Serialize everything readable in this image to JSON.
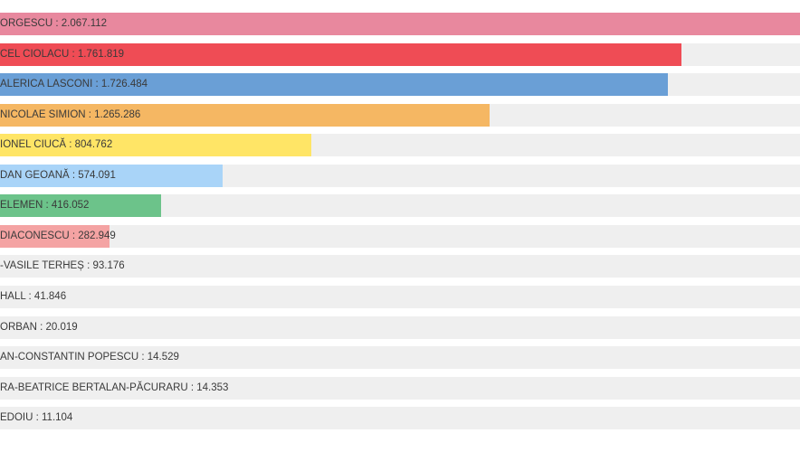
{
  "chart_data": {
    "type": "bar",
    "orientation": "horizontal",
    "categories": [
      "ORGESCU",
      "CEL CIOLACU",
      "ALERICA LASCONI",
      "NICOLAE SIMION",
      "IONEL CIUCĂ",
      "DAN GEOANĂ",
      "ELEMEN",
      "DIACONESCU",
      "-VASILE TERHEȘ",
      "HALL",
      "ORBAN",
      "AN-CONSTANTIN POPESCU",
      "RA-BEATRICE BERTALAN-PĂCURARU",
      "EDOIU"
    ],
    "values": [
      2067112,
      1761819,
      1726484,
      1265286,
      804762,
      574091,
      416052,
      282949,
      93176,
      41846,
      20019,
      14529,
      14353,
      11104
    ],
    "labels": [
      "ORGESCU : 2.067.112",
      "CEL CIOLACU : 1.761.819",
      "ALERICA LASCONI : 1.726.484",
      "NICOLAE SIMION : 1.265.286",
      "IONEL CIUCĂ : 804.762",
      "DAN GEOANĂ : 574.091",
      "ELEMEN : 416.052",
      "DIACONESCU : 282.949",
      "-VASILE TERHEȘ : 93.176",
      "HALL : 41.846",
      "ORBAN : 20.019",
      "AN-CONSTANTIN POPESCU : 14.529",
      "RA-BEATRICE BERTALAN-PĂCURARU : 14.353",
      "EDOIU : 11.104"
    ],
    "colors": [
      "#e8889e",
      "#ef4c55",
      "#6a9fd6",
      "#f5b763",
      "#ffe566",
      "#a9d4f8",
      "#6cc38a",
      "#f4a3a3",
      null,
      null,
      null,
      null,
      null,
      null
    ],
    "track_color": "#efefef",
    "xlim": [
      0,
      2067112
    ],
    "title": "",
    "xlabel": "",
    "ylabel": "",
    "legend": "none",
    "grid": false
  }
}
